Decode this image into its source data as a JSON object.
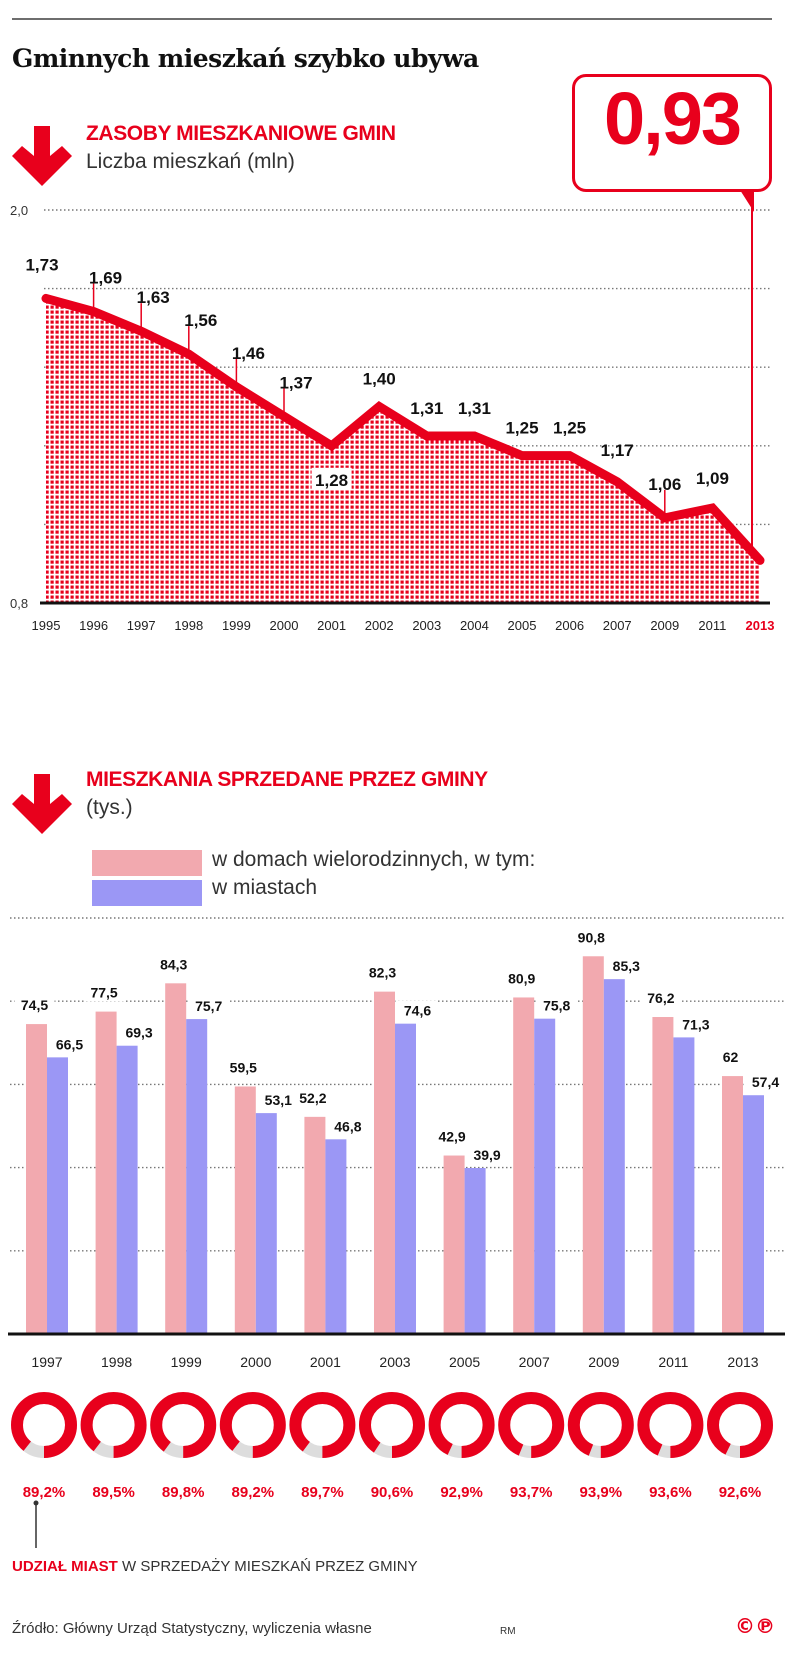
{
  "title": "Gminnych mieszkań szybko ubywa",
  "callout": {
    "value": "0,93",
    "year": "2013"
  },
  "section1": {
    "title": "ZASOBY MIESZKANIOWE GMIN",
    "subtitle": "Liczba mieszkań (mln)",
    "icon": "arrow-down-icon"
  },
  "section2": {
    "title": "MIESZKANIA SPRZEDANE PRZEZ GMINY",
    "subtitle": "(tys.)",
    "icon": "arrow-down-icon",
    "legend": [
      {
        "label": "w domach wielorodzinnych, w tym:",
        "color": "#f2a9af"
      },
      {
        "label": "w miastach",
        "color": "#9b97f5"
      }
    ]
  },
  "share": {
    "caption_red": "UDZIAŁ MIAST",
    "caption_rest": " W SPRZEDAŻY MIESZKAŃ PRZEZ GMINY"
  },
  "footer": {
    "source": "Źródło: Główny Urząd Statystyczny, wyliczenia własne",
    "author": "RM",
    "logo": "©℗"
  },
  "colors": {
    "accent": "#e8001c",
    "text": "#1a1a1a",
    "grid": "#777777",
    "donut_rest": "#dddddd"
  },
  "chart_data": [
    {
      "type": "area",
      "title": "ZASOBY MIESZKANIOWE GMIN",
      "ylabel": "Liczba mieszkań (mln)",
      "x": [
        "1995",
        "1996",
        "1997",
        "1998",
        "1999",
        "2000",
        "2001",
        "2002",
        "2003",
        "2004",
        "2005",
        "2006",
        "2007",
        "2009",
        "2011",
        "2013"
      ],
      "values": [
        1.73,
        1.69,
        1.63,
        1.56,
        1.46,
        1.37,
        1.28,
        1.4,
        1.31,
        1.31,
        1.25,
        1.25,
        1.17,
        1.06,
        1.09,
        0.93
      ],
      "labels": [
        "1,73",
        "1,69",
        "1,63",
        "1,56",
        "1,46",
        "1,37",
        "1,28",
        "1,40",
        "1,31",
        "1,31",
        "1,25",
        "1,25",
        "1,17",
        "1,06",
        "1,09",
        ""
      ],
      "ylim": [
        0.8,
        2.0
      ],
      "yticks": [
        {
          "v": 2.0,
          "label": "2,0"
        },
        {
          "v": 0.8,
          "label": "0,8"
        }
      ],
      "grid_values": [
        2.0,
        1.76,
        1.52,
        1.28,
        1.04
      ],
      "grid": true,
      "highlight_x": "2013"
    },
    {
      "type": "bar",
      "title": "MIESZKANIA SPRZEDANE PRZEZ GMINY",
      "ylabel": "(tys.)",
      "categories": [
        "1997",
        "1998",
        "1999",
        "2000",
        "2001",
        "2003",
        "2005",
        "2007",
        "2009",
        "2011",
        "2013"
      ],
      "series": [
        {
          "name": "w domach wielorodzinnych, w tym:",
          "values": [
            74.5,
            77.5,
            84.3,
            59.5,
            52.2,
            82.3,
            42.9,
            80.9,
            90.8,
            76.2,
            62
          ],
          "labels": [
            "74,5",
            "77,5",
            "84,3",
            "59,5",
            "52,2",
            "82,3",
            "42,9",
            "80,9",
            "90,8",
            "76,2",
            "62"
          ]
        },
        {
          "name": "w miastach",
          "values": [
            66.5,
            69.3,
            75.7,
            53.1,
            46.8,
            74.6,
            39.9,
            75.8,
            85.3,
            71.3,
            57.4
          ],
          "labels": [
            "66,5",
            "69,3",
            "75,7",
            "53,1",
            "46,8",
            "74,6",
            "39,9",
            "75,8",
            "85,3",
            "71,3",
            "57,4"
          ]
        }
      ],
      "ylim": [
        0,
        100
      ],
      "grid_values": [
        20,
        40,
        60,
        80,
        100
      ],
      "grid": true,
      "legend": "top-left"
    },
    {
      "type": "pie",
      "title": "UDZIAŁ MIAST W SPRZEDAŻY MIESZKAŃ PRZEZ GMINY",
      "categories": [
        "1997",
        "1998",
        "1999",
        "2000",
        "2001",
        "2003",
        "2005",
        "2007",
        "2009",
        "2011",
        "2013"
      ],
      "values": [
        89.2,
        89.5,
        89.8,
        89.2,
        89.7,
        90.6,
        92.9,
        93.7,
        93.9,
        93.6,
        92.6
      ],
      "labels": [
        "89,2%",
        "89,5%",
        "89,8%",
        "89,2%",
        "89,7%",
        "90,6%",
        "92,9%",
        "93,7%",
        "93,9%",
        "93,6%",
        "92,6%"
      ]
    }
  ]
}
